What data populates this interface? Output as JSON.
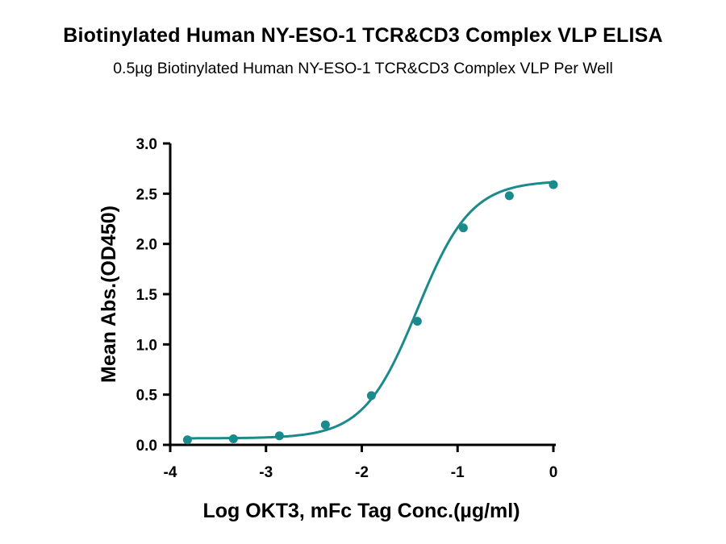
{
  "chart_data": {
    "type": "scatter",
    "title": "Biotinylated Human NY-ESO-1 TCR&CD3 Complex VLP ELISA",
    "subtitle": "0.5µg Biotinylated Human NY-ESO-1 TCR&CD3 Complex VLP Per Well",
    "xlabel": "Log OKT3, mFc Tag Conc.(µg/ml)",
    "ylabel": "Mean Abs.(OD450)",
    "xlim": [
      -4,
      0
    ],
    "ylim": [
      0,
      3.0
    ],
    "x_ticks": [
      "-4",
      "-3",
      "-2",
      "-1",
      "0"
    ],
    "y_ticks": [
      "0.0",
      "0.5",
      "1.0",
      "1.5",
      "2.0",
      "2.5",
      "3.0"
    ],
    "grid": false,
    "series": [
      {
        "x": [
          -3.82,
          -3.34,
          -2.86,
          -2.38,
          -1.9,
          -1.42,
          -0.94,
          -0.46,
          0.0
        ],
        "y": [
          0.05,
          0.06,
          0.09,
          0.2,
          0.49,
          1.23,
          2.16,
          2.48,
          2.59
        ],
        "fit": "4PL sigmoidal curve",
        "color": "#1a8a8c"
      }
    ]
  }
}
